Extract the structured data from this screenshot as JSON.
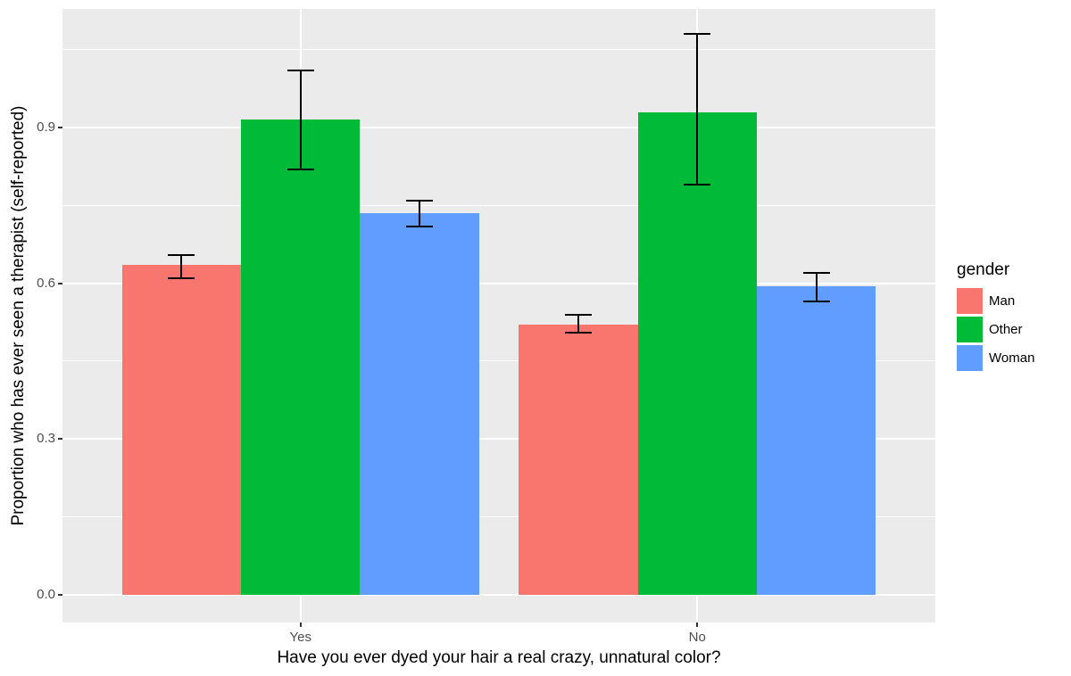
{
  "chart_data": {
    "type": "bar",
    "title": "",
    "xlabel": "Have you ever dyed your hair a real crazy, unnatural color?",
    "ylabel": "Proportion who has ever seen a therapist (self-reported)",
    "categories": [
      "Yes",
      "No"
    ],
    "series": [
      {
        "name": "Man",
        "color": "#F8766D",
        "values": [
          0.635,
          0.52
        ],
        "error_low": [
          0.61,
          0.505
        ],
        "error_high": [
          0.655,
          0.54
        ]
      },
      {
        "name": "Other",
        "color": "#00BA38",
        "values": [
          0.915,
          0.93
        ],
        "error_low": [
          0.82,
          0.79
        ],
        "error_high": [
          1.01,
          1.08
        ]
      },
      {
        "name": "Woman",
        "color": "#619CFF",
        "values": [
          0.735,
          0.595
        ],
        "error_low": [
          0.71,
          0.565
        ],
        "error_high": [
          0.76,
          0.62
        ]
      }
    ],
    "y_ticks": [
      "0.0",
      "0.3",
      "0.6",
      "0.9"
    ],
    "y_tick_values": [
      0.0,
      0.3,
      0.6,
      0.9
    ],
    "y_minor_values": [
      0.15,
      0.45,
      0.75,
      1.05
    ],
    "ylim": [
      -0.054,
      1.129
    ],
    "grid": true,
    "legend": {
      "title": "gender",
      "position": "right"
    },
    "bar_mode": "dodge",
    "error_bar_color": "#000000",
    "panel_background": "#EBEBEB",
    "grid_color": "#FFFFFF",
    "tick_label_color": "#4D4D4D"
  }
}
